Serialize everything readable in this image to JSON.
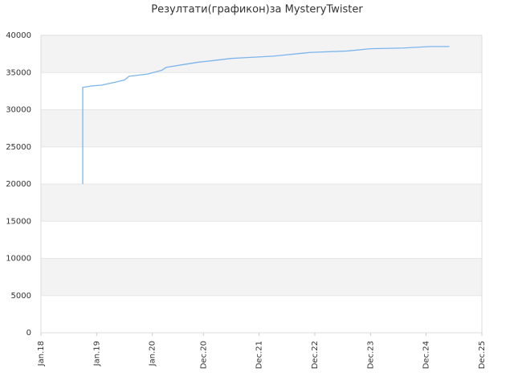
{
  "chart_data": {
    "type": "line",
    "title": "Резултати(графикон)за MysteryTwister",
    "x": [
      "2018-10",
      "2018-10",
      "2018-12",
      "2019-02",
      "2019-05",
      "2019-07",
      "2019-08",
      "2019-12",
      "2020-03",
      "2020-04",
      "2020-08",
      "2020-11",
      "2021-02",
      "2021-06",
      "2021-09",
      "2022-03",
      "2022-11",
      "2023-07",
      "2023-12",
      "2024-07",
      "2025-01",
      "2025-05"
    ],
    "series": [
      {
        "name": "MysteryTwister",
        "color": "#7cb5ec",
        "values": [
          20000,
          33000,
          33200,
          33300,
          33700,
          34000,
          34500,
          34800,
          35300,
          35700,
          36100,
          36400,
          36600,
          36900,
          37000,
          37200,
          37700,
          37900,
          38200,
          38300,
          38500,
          38500
        ]
      }
    ],
    "xlim": [
      "2018-01",
      "2025-12"
    ],
    "xticks": [
      {
        "value": "2018-01",
        "label": "Jan.18"
      },
      {
        "value": "2019-01",
        "label": "Jan.19"
      },
      {
        "value": "2020-01",
        "label": "Jan.20"
      },
      {
        "value": "2020-12",
        "label": "Dec.20"
      },
      {
        "value": "2021-12",
        "label": "Dec.21"
      },
      {
        "value": "2022-12",
        "label": "Dec.22"
      },
      {
        "value": "2023-12",
        "label": "Dec.23"
      },
      {
        "value": "2024-12",
        "label": "Dec.24"
      },
      {
        "value": "2025-12",
        "label": "Dec.25"
      }
    ],
    "ylim": [
      0,
      40000
    ],
    "yticks": [
      0,
      5000,
      10000,
      15000,
      20000,
      25000,
      30000,
      35000,
      40000
    ],
    "grid": true
  }
}
